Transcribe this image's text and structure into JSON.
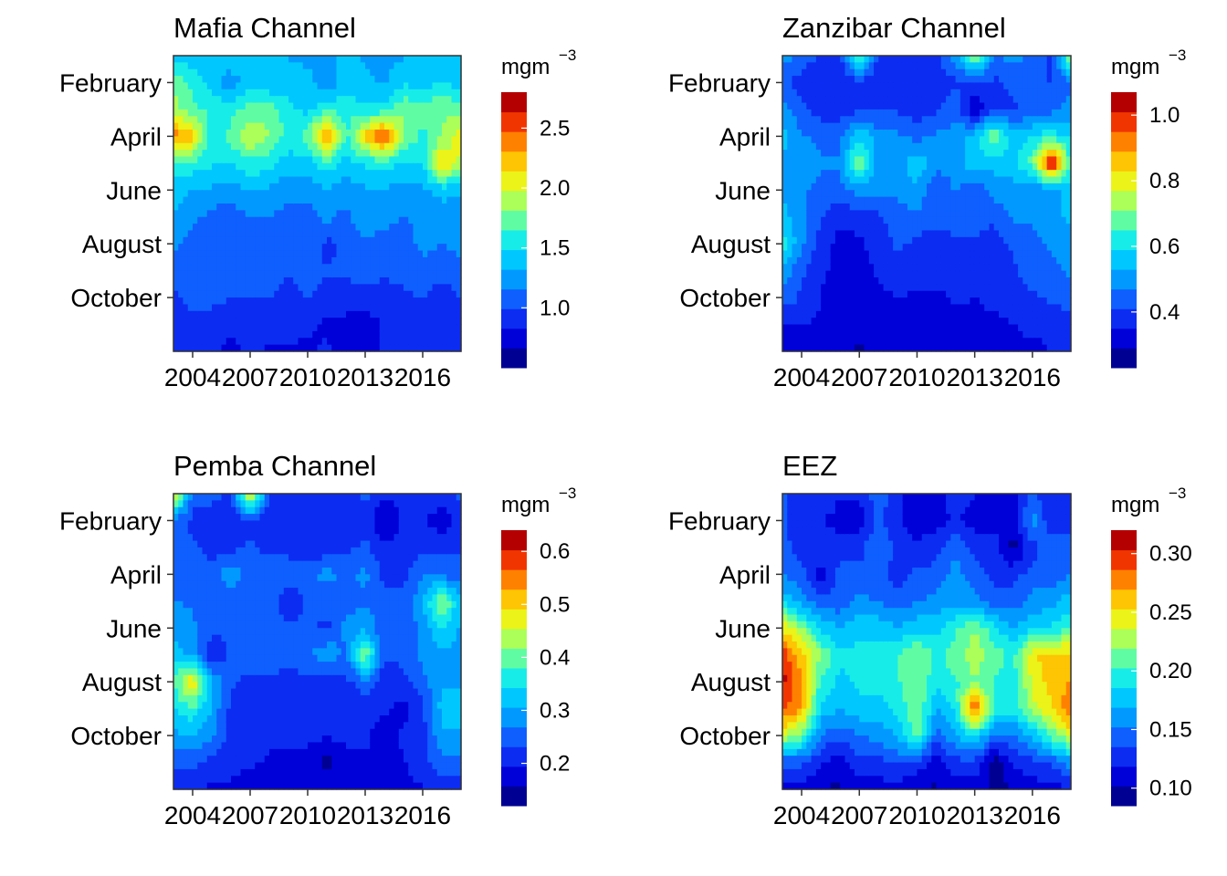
{
  "chart_data": [
    {
      "type": "heatmap",
      "title": "Mafia Channel",
      "x_tick_labels": [
        "2004",
        "2007",
        "2010",
        "2013",
        "2016"
      ],
      "x_ticks": [
        2004,
        2007,
        2010,
        2013,
        2016
      ],
      "xlim": [
        2003,
        2018
      ],
      "y_tick_labels": [
        "February",
        "April",
        "June",
        "August",
        "October"
      ],
      "y_ticks": [
        2,
        4,
        6,
        8,
        10
      ],
      "ylim": [
        12,
        1
      ],
      "colorbar": {
        "label": "mgm",
        "label_sup": "−3",
        "ticks": [
          1.0,
          1.5,
          2.0,
          2.5
        ],
        "tick_labels": [
          "1.0",
          "1.5",
          "2.0",
          "2.5"
        ],
        "range": [
          0.5,
          2.8
        ]
      },
      "years": [
        2003,
        2004,
        2005,
        2006,
        2007,
        2008,
        2009,
        2010,
        2011,
        2012,
        2013,
        2014,
        2015,
        2016,
        2017,
        2018
      ],
      "months": [
        1,
        2,
        3,
        4,
        5,
        6,
        7,
        8,
        9,
        10,
        11,
        12
      ],
      "values": [
        [
          1.35,
          1.4,
          1.3,
          1.5,
          1.35,
          1.4,
          1.3,
          1.25,
          1.3,
          1.35,
          1.3,
          1.3,
          1.3,
          1.35,
          1.4,
          1.35
        ],
        [
          1.8,
          1.6,
          1.4,
          1.2,
          1.45,
          1.3,
          1.45,
          1.4,
          1.2,
          1.4,
          1.35,
          1.3,
          1.45,
          1.4,
          1.5,
          1.4
        ],
        [
          1.9,
          1.7,
          1.6,
          1.6,
          1.7,
          1.8,
          1.5,
          1.45,
          1.6,
          1.6,
          1.5,
          1.55,
          1.8,
          1.7,
          1.8,
          1.7
        ],
        [
          2.4,
          2.2,
          1.5,
          1.7,
          2.0,
          1.8,
          1.6,
          1.7,
          2.5,
          1.6,
          2.2,
          2.55,
          1.8,
          1.6,
          1.8,
          2.1
        ],
        [
          1.6,
          1.6,
          1.5,
          1.5,
          1.6,
          1.55,
          1.4,
          1.4,
          1.6,
          1.4,
          1.5,
          1.6,
          1.45,
          1.5,
          2.2,
          1.9
        ],
        [
          1.4,
          1.3,
          1.3,
          1.25,
          1.35,
          1.3,
          1.2,
          1.2,
          1.3,
          1.25,
          1.3,
          1.3,
          1.25,
          1.3,
          1.4,
          1.35
        ],
        [
          1.3,
          1.2,
          1.1,
          1.05,
          1.15,
          1.15,
          1.1,
          1.1,
          1.2,
          1.1,
          1.3,
          1.2,
          1.15,
          1.2,
          1.2,
          1.25
        ],
        [
          1.2,
          1.1,
          1.1,
          1.05,
          1.1,
          1.1,
          1.05,
          1.1,
          0.95,
          1.05,
          1.1,
          1.1,
          1.1,
          1.2,
          1.15,
          1.2
        ],
        [
          1.1,
          1.1,
          1.05,
          1.0,
          1.05,
          1.05,
          1.0,
          1.05,
          1.0,
          1.0,
          1.05,
          1.0,
          1.05,
          1.1,
          1.1,
          1.1
        ],
        [
          0.95,
          1.05,
          1.05,
          1.0,
          1.0,
          1.0,
          0.95,
          1.0,
          0.95,
          0.95,
          0.95,
          0.95,
          0.95,
          1.0,
          0.85,
          1.0
        ],
        [
          0.85,
          0.95,
          0.9,
          0.85,
          0.9,
          0.9,
          0.9,
          0.85,
          0.8,
          0.75,
          0.7,
          0.85,
          0.9,
          0.9,
          0.85,
          0.9
        ],
        [
          0.85,
          0.9,
          0.85,
          0.8,
          0.85,
          0.8,
          0.8,
          0.8,
          0.85,
          0.8,
          0.8,
          0.85,
          0.85,
          0.85,
          0.85,
          0.85
        ]
      ]
    },
    {
      "type": "heatmap",
      "title": "Zanzibar Channel",
      "x_tick_labels": [
        "2004",
        "2007",
        "2010",
        "2013",
        "2016"
      ],
      "x_ticks": [
        2004,
        2007,
        2010,
        2013,
        2016
      ],
      "xlim": [
        2003,
        2018
      ],
      "y_tick_labels": [
        "February",
        "April",
        "June",
        "August",
        "October"
      ],
      "y_ticks": [
        2,
        4,
        6,
        8,
        10
      ],
      "ylim": [
        12,
        1
      ],
      "colorbar": {
        "label": "mgm",
        "label_sup": "−3",
        "ticks": [
          0.4,
          0.6,
          0.8,
          1.0
        ],
        "tick_labels": [
          "0.4",
          "0.6",
          "0.8",
          "1.0"
        ],
        "range": [
          0.23,
          1.07
        ]
      },
      "years": [
        2003,
        2004,
        2005,
        2006,
        2007,
        2008,
        2009,
        2010,
        2011,
        2012,
        2013,
        2014,
        2015,
        2016,
        2017,
        2018
      ],
      "months": [
        1,
        2,
        3,
        4,
        5,
        6,
        7,
        8,
        9,
        10,
        11,
        12
      ],
      "values": [
        [
          0.5,
          0.45,
          0.4,
          0.4,
          0.72,
          0.4,
          0.4,
          0.38,
          0.4,
          0.5,
          0.72,
          0.45,
          0.5,
          0.45,
          0.4,
          0.72
        ],
        [
          0.42,
          0.38,
          0.36,
          0.35,
          0.4,
          0.35,
          0.35,
          0.35,
          0.36,
          0.4,
          0.4,
          0.4,
          0.42,
          0.45,
          0.4,
          0.45
        ],
        [
          0.5,
          0.42,
          0.38,
          0.38,
          0.4,
          0.4,
          0.4,
          0.38,
          0.4,
          0.45,
          0.3,
          0.4,
          0.4,
          0.42,
          0.45,
          0.5
        ],
        [
          0.55,
          0.48,
          0.45,
          0.45,
          0.58,
          0.5,
          0.48,
          0.45,
          0.48,
          0.5,
          0.55,
          0.72,
          0.55,
          0.6,
          0.62,
          0.58
        ],
        [
          0.52,
          0.5,
          0.48,
          0.48,
          0.72,
          0.5,
          0.5,
          0.58,
          0.5,
          0.5,
          0.58,
          0.55,
          0.58,
          0.68,
          1.07,
          0.62
        ],
        [
          0.52,
          0.48,
          0.45,
          0.45,
          0.5,
          0.48,
          0.48,
          0.52,
          0.4,
          0.48,
          0.42,
          0.5,
          0.5,
          0.48,
          0.5,
          0.55
        ],
        [
          0.55,
          0.5,
          0.42,
          0.36,
          0.38,
          0.4,
          0.45,
          0.45,
          0.45,
          0.45,
          0.45,
          0.42,
          0.48,
          0.48,
          0.5,
          0.55
        ],
        [
          0.62,
          0.48,
          0.38,
          0.33,
          0.34,
          0.38,
          0.42,
          0.4,
          0.36,
          0.4,
          0.4,
          0.38,
          0.42,
          0.45,
          0.48,
          0.5
        ],
        [
          0.52,
          0.42,
          0.36,
          0.33,
          0.32,
          0.36,
          0.38,
          0.38,
          0.4,
          0.38,
          0.38,
          0.4,
          0.4,
          0.45,
          0.45,
          0.48
        ],
        [
          0.45,
          0.4,
          0.35,
          0.32,
          0.32,
          0.34,
          0.35,
          0.34,
          0.33,
          0.36,
          0.35,
          0.36,
          0.38,
          0.4,
          0.42,
          0.45
        ],
        [
          0.35,
          0.35,
          0.34,
          0.33,
          0.31,
          0.33,
          0.34,
          0.33,
          0.3,
          0.33,
          0.34,
          0.34,
          0.35,
          0.36,
          0.36,
          0.38
        ],
        [
          0.33,
          0.3,
          0.33,
          0.31,
          0.28,
          0.32,
          0.33,
          0.33,
          0.31,
          0.33,
          0.33,
          0.33,
          0.34,
          0.34,
          0.35,
          0.36
        ]
      ]
    },
    {
      "type": "heatmap",
      "title": "Pemba Channel",
      "x_tick_labels": [
        "2004",
        "2007",
        "2010",
        "2013",
        "2016"
      ],
      "x_ticks": [
        2004,
        2007,
        2010,
        2013,
        2016
      ],
      "xlim": [
        2003,
        2018
      ],
      "y_tick_labels": [
        "February",
        "April",
        "June",
        "August",
        "October"
      ],
      "y_ticks": [
        2,
        4,
        6,
        8,
        10
      ],
      "ylim": [
        12,
        1
      ],
      "colorbar": {
        "label": "mgm",
        "label_sup": "−3",
        "ticks": [
          0.2,
          0.3,
          0.4,
          0.5,
          0.6
        ],
        "tick_labels": [
          "0.2",
          "0.3",
          "0.4",
          "0.5",
          "0.6"
        ],
        "range": [
          0.12,
          0.64
        ]
      },
      "years": [
        2003,
        2004,
        2005,
        2006,
        2007,
        2008,
        2009,
        2010,
        2011,
        2012,
        2013,
        2014,
        2015,
        2016,
        2017,
        2018
      ],
      "months": [
        1,
        2,
        3,
        4,
        5,
        6,
        7,
        8,
        9,
        10,
        11,
        12
      ],
      "values": [
        [
          0.5,
          0.25,
          0.25,
          0.22,
          0.5,
          0.22,
          0.2,
          0.2,
          0.22,
          0.22,
          0.24,
          0.2,
          0.22,
          0.22,
          0.22,
          0.24
        ],
        [
          0.26,
          0.22,
          0.2,
          0.2,
          0.22,
          0.2,
          0.2,
          0.2,
          0.2,
          0.21,
          0.22,
          0.15,
          0.2,
          0.2,
          0.17,
          0.21
        ],
        [
          0.25,
          0.24,
          0.22,
          0.22,
          0.24,
          0.22,
          0.22,
          0.2,
          0.21,
          0.22,
          0.24,
          0.2,
          0.21,
          0.22,
          0.22,
          0.23
        ],
        [
          0.26,
          0.25,
          0.24,
          0.3,
          0.24,
          0.27,
          0.25,
          0.26,
          0.28,
          0.26,
          0.28,
          0.22,
          0.22,
          0.27,
          0.25,
          0.25
        ],
        [
          0.27,
          0.26,
          0.24,
          0.24,
          0.26,
          0.25,
          0.2,
          0.24,
          0.25,
          0.25,
          0.26,
          0.25,
          0.24,
          0.3,
          0.44,
          0.3
        ],
        [
          0.3,
          0.28,
          0.24,
          0.24,
          0.26,
          0.26,
          0.24,
          0.24,
          0.22,
          0.28,
          0.3,
          0.24,
          0.24,
          0.28,
          0.35,
          0.3
        ],
        [
          0.32,
          0.3,
          0.2,
          0.24,
          0.26,
          0.26,
          0.24,
          0.26,
          0.3,
          0.26,
          0.42,
          0.24,
          0.24,
          0.28,
          0.3,
          0.28
        ],
        [
          0.38,
          0.5,
          0.3,
          0.24,
          0.22,
          0.22,
          0.22,
          0.22,
          0.22,
          0.22,
          0.26,
          0.2,
          0.22,
          0.26,
          0.3,
          0.3
        ],
        [
          0.34,
          0.38,
          0.3,
          0.22,
          0.2,
          0.2,
          0.2,
          0.2,
          0.2,
          0.2,
          0.2,
          0.2,
          0.18,
          0.22,
          0.32,
          0.32
        ],
        [
          0.3,
          0.3,
          0.28,
          0.22,
          0.2,
          0.2,
          0.2,
          0.2,
          0.2,
          0.2,
          0.2,
          0.18,
          0.2,
          0.22,
          0.3,
          0.3
        ],
        [
          0.24,
          0.24,
          0.22,
          0.2,
          0.2,
          0.19,
          0.19,
          0.19,
          0.14,
          0.19,
          0.19,
          0.19,
          0.19,
          0.22,
          0.26,
          0.26
        ],
        [
          0.2,
          0.19,
          0.19,
          0.19,
          0.18,
          0.18,
          0.18,
          0.18,
          0.18,
          0.18,
          0.18,
          0.18,
          0.18,
          0.19,
          0.2,
          0.2
        ]
      ]
    },
    {
      "type": "heatmap",
      "title": "EEZ",
      "x_tick_labels": [
        "2004",
        "2007",
        "2010",
        "2013",
        "2016"
      ],
      "x_ticks": [
        2004,
        2007,
        2010,
        2013,
        2016
      ],
      "xlim": [
        2003,
        2018
      ],
      "y_tick_labels": [
        "February",
        "April",
        "June",
        "August",
        "October"
      ],
      "y_ticks": [
        2,
        4,
        6,
        8,
        10
      ],
      "ylim": [
        12,
        1
      ],
      "colorbar": {
        "label": "mgm",
        "label_sup": "−3",
        "ticks": [
          0.1,
          0.15,
          0.2,
          0.25,
          0.3
        ],
        "tick_labels": [
          "0.10",
          "0.15",
          "0.20",
          "0.25",
          "0.30"
        ],
        "range": [
          0.085,
          0.32
        ]
      },
      "years": [
        2003,
        2004,
        2005,
        2006,
        2007,
        2008,
        2009,
        2010,
        2011,
        2012,
        2013,
        2014,
        2015,
        2016,
        2017,
        2018
      ],
      "months": [
        1,
        2,
        3,
        4,
        5,
        6,
        7,
        8,
        9,
        10,
        11,
        12
      ],
      "values": [
        [
          0.14,
          0.12,
          0.14,
          0.12,
          0.12,
          0.15,
          0.12,
          0.11,
          0.11,
          0.13,
          0.12,
          0.11,
          0.11,
          0.14,
          0.12,
          0.12
        ],
        [
          0.14,
          0.12,
          0.12,
          0.11,
          0.11,
          0.14,
          0.12,
          0.11,
          0.11,
          0.12,
          0.11,
          0.11,
          0.11,
          0.16,
          0.12,
          0.13
        ],
        [
          0.14,
          0.13,
          0.13,
          0.13,
          0.13,
          0.15,
          0.13,
          0.12,
          0.13,
          0.15,
          0.13,
          0.13,
          0.095,
          0.13,
          0.15,
          0.14
        ],
        [
          0.15,
          0.14,
          0.11,
          0.14,
          0.14,
          0.14,
          0.13,
          0.14,
          0.14,
          0.16,
          0.14,
          0.13,
          0.13,
          0.14,
          0.14,
          0.15
        ],
        [
          0.18,
          0.16,
          0.14,
          0.14,
          0.16,
          0.15,
          0.14,
          0.15,
          0.16,
          0.16,
          0.16,
          0.14,
          0.14,
          0.16,
          0.16,
          0.18
        ],
        [
          0.25,
          0.22,
          0.18,
          0.17,
          0.18,
          0.18,
          0.17,
          0.18,
          0.18,
          0.2,
          0.22,
          0.19,
          0.17,
          0.18,
          0.19,
          0.2
        ],
        [
          0.3,
          0.26,
          0.22,
          0.19,
          0.19,
          0.19,
          0.2,
          0.22,
          0.2,
          0.21,
          0.23,
          0.21,
          0.2,
          0.25,
          0.26,
          0.26
        ],
        [
          0.31,
          0.27,
          0.2,
          0.18,
          0.19,
          0.19,
          0.2,
          0.22,
          0.19,
          0.2,
          0.22,
          0.2,
          0.19,
          0.24,
          0.26,
          0.27
        ],
        [
          0.29,
          0.27,
          0.18,
          0.17,
          0.18,
          0.18,
          0.19,
          0.22,
          0.17,
          0.19,
          0.29,
          0.2,
          0.19,
          0.23,
          0.25,
          0.29
        ],
        [
          0.24,
          0.21,
          0.15,
          0.14,
          0.15,
          0.16,
          0.17,
          0.21,
          0.14,
          0.17,
          0.19,
          0.15,
          0.15,
          0.17,
          0.21,
          0.24
        ],
        [
          0.14,
          0.14,
          0.12,
          0.11,
          0.13,
          0.13,
          0.14,
          0.13,
          0.11,
          0.13,
          0.13,
          0.09,
          0.12,
          0.13,
          0.14,
          0.16
        ],
        [
          0.11,
          0.11,
          0.1,
          0.1,
          0.11,
          0.11,
          0.11,
          0.1,
          0.1,
          0.11,
          0.11,
          0.1,
          0.1,
          0.11,
          0.11,
          0.12
        ]
      ]
    }
  ]
}
